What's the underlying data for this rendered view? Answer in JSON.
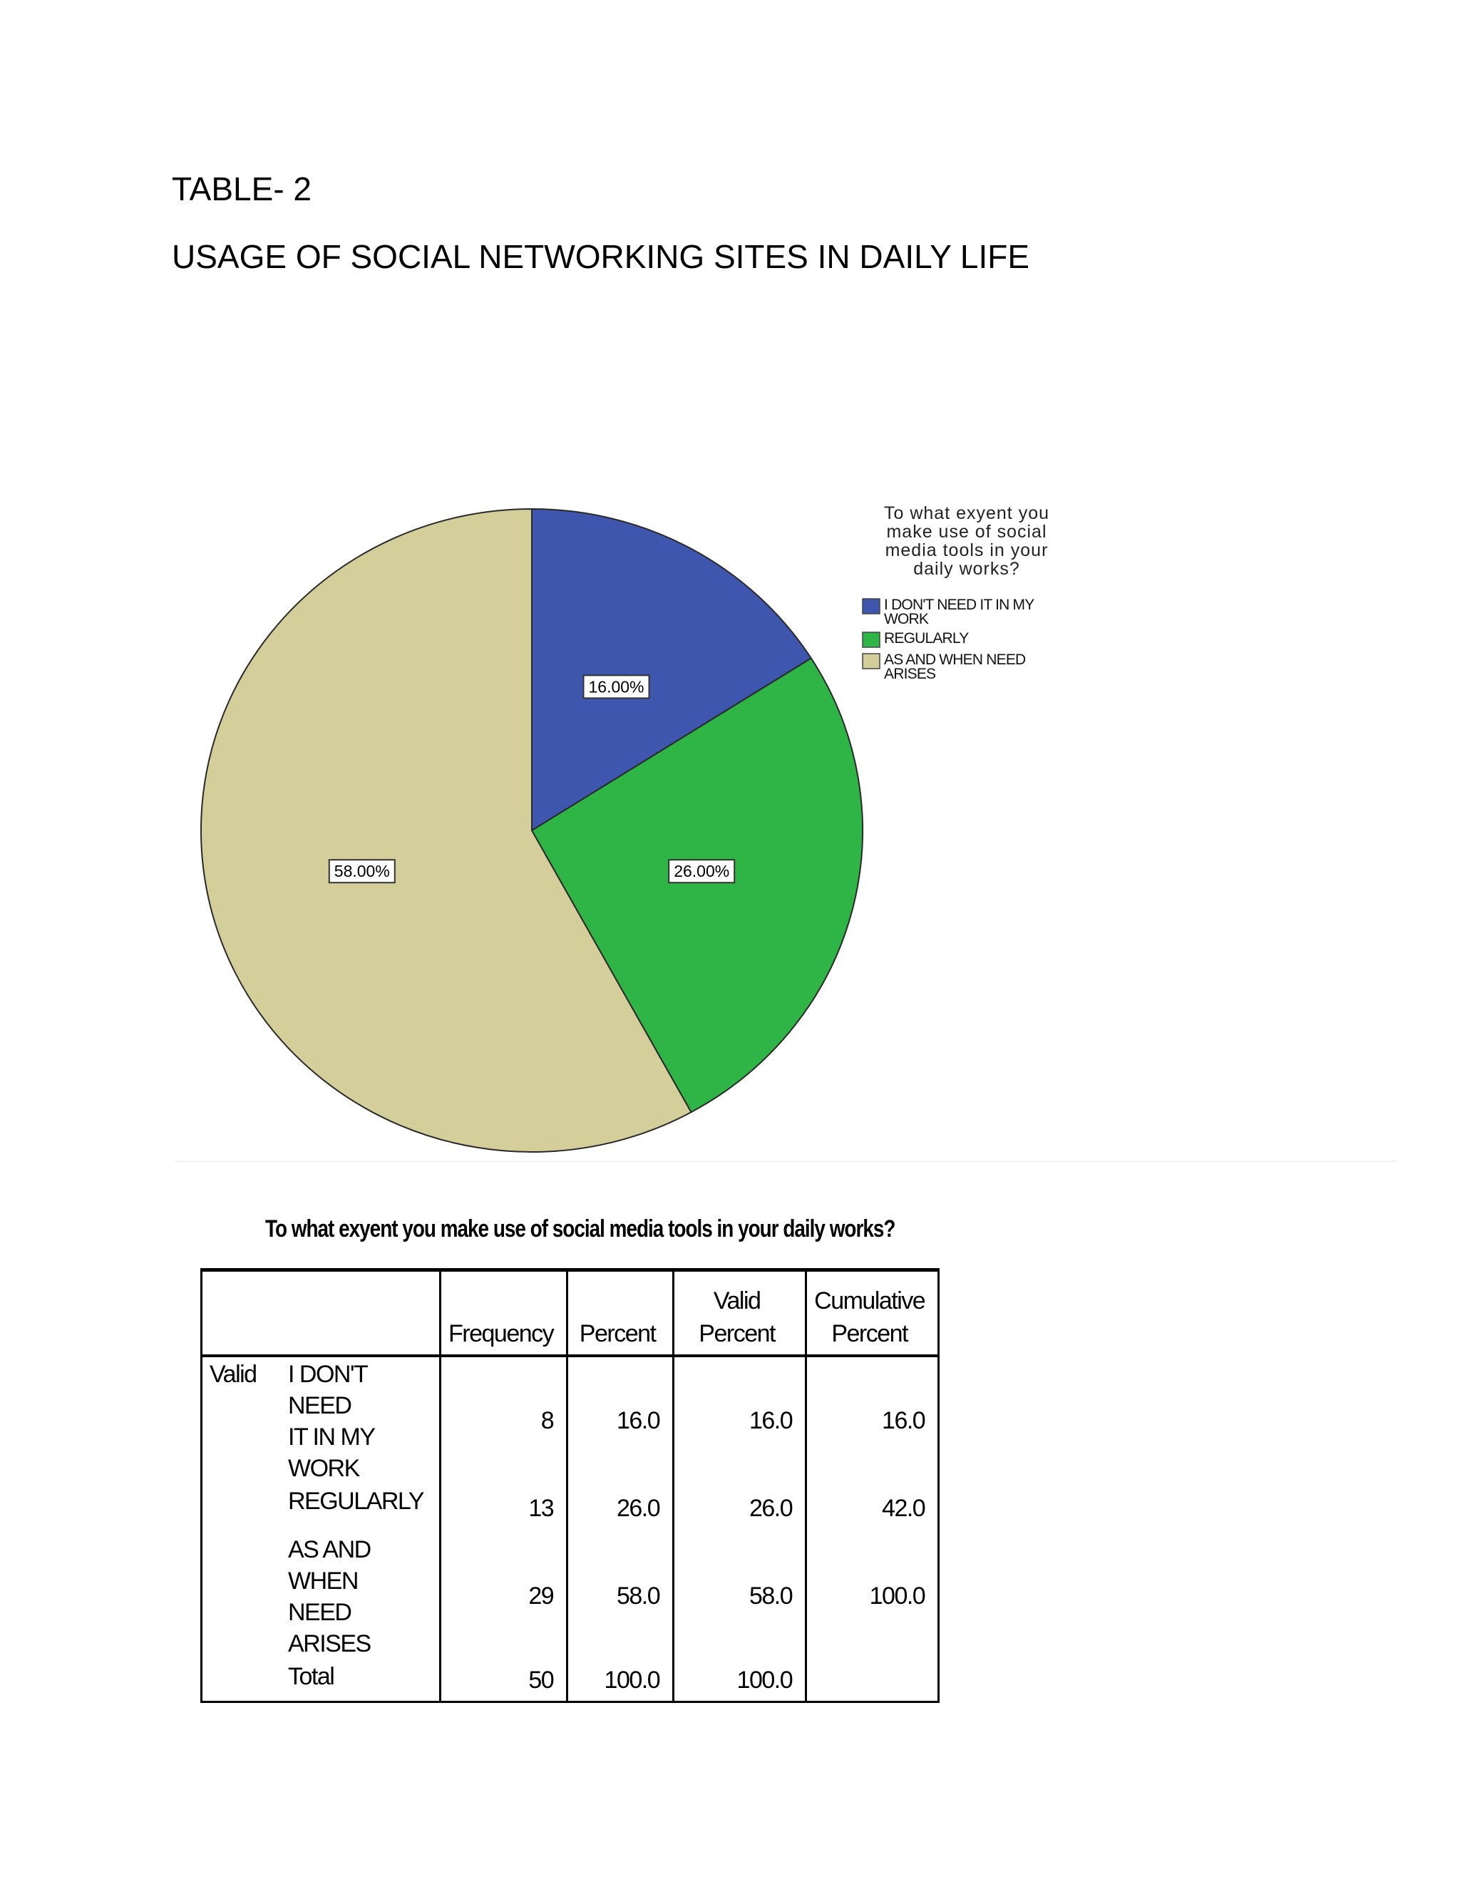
{
  "document": {
    "table_label": "TABLE- 2",
    "title": "USAGE OF SOCIAL NETWORKING SITES IN DAILY LIFE"
  },
  "chart_data": {
    "type": "pie",
    "legend_title": [
      "To what exyent you",
      "make use of social",
      "media tools in your",
      "daily works?"
    ],
    "legend_position": "right",
    "slices": [
      {
        "name": "I DON'T NEED IT IN MY WORK",
        "legend_lines": [
          "I DON'T NEED IT IN MY",
          "WORK"
        ],
        "value": 16.0,
        "label": "16.00%",
        "color": "#3f56ae"
      },
      {
        "name": "REGULARLY",
        "legend_lines": [
          "REGULARLY"
        ],
        "value": 26.0,
        "label": "26.00%",
        "color": "#2fb446"
      },
      {
        "name": "AS AND WHEN NEED ARISES",
        "legend_lines": [
          "AS AND WHEN NEED",
          "ARISES"
        ],
        "value": 58.0,
        "label": "58.00%",
        "color": "#d3ce9a"
      }
    ]
  },
  "table": {
    "title": "To what exyent you make use of social media tools in your daily works?",
    "headers": {
      "frequency": "Frequency",
      "percent": "Percent",
      "valid_percent": "Valid Percent",
      "cumulative_line1": "Cumulative",
      "cumulative_line2": "Percent"
    },
    "valid_label": "Valid",
    "rows": [
      {
        "label_line1": "I DON'T NEED",
        "label_line2": "IT IN MY WORK",
        "frequency": "8",
        "percent": "16.0",
        "valid_percent": "16.0",
        "cumulative": "16.0"
      },
      {
        "label_line1": "REGULARLY",
        "label_line2": "",
        "frequency": "13",
        "percent": "26.0",
        "valid_percent": "26.0",
        "cumulative": "42.0"
      },
      {
        "label_line1": "AS AND WHEN",
        "label_line2": "NEED ARISES",
        "frequency": "29",
        "percent": "58.0",
        "valid_percent": "58.0",
        "cumulative": "100.0"
      },
      {
        "label_line1": "Total",
        "label_line2": "",
        "frequency": "50",
        "percent": "100.0",
        "valid_percent": "100.0",
        "cumulative": ""
      }
    ]
  }
}
